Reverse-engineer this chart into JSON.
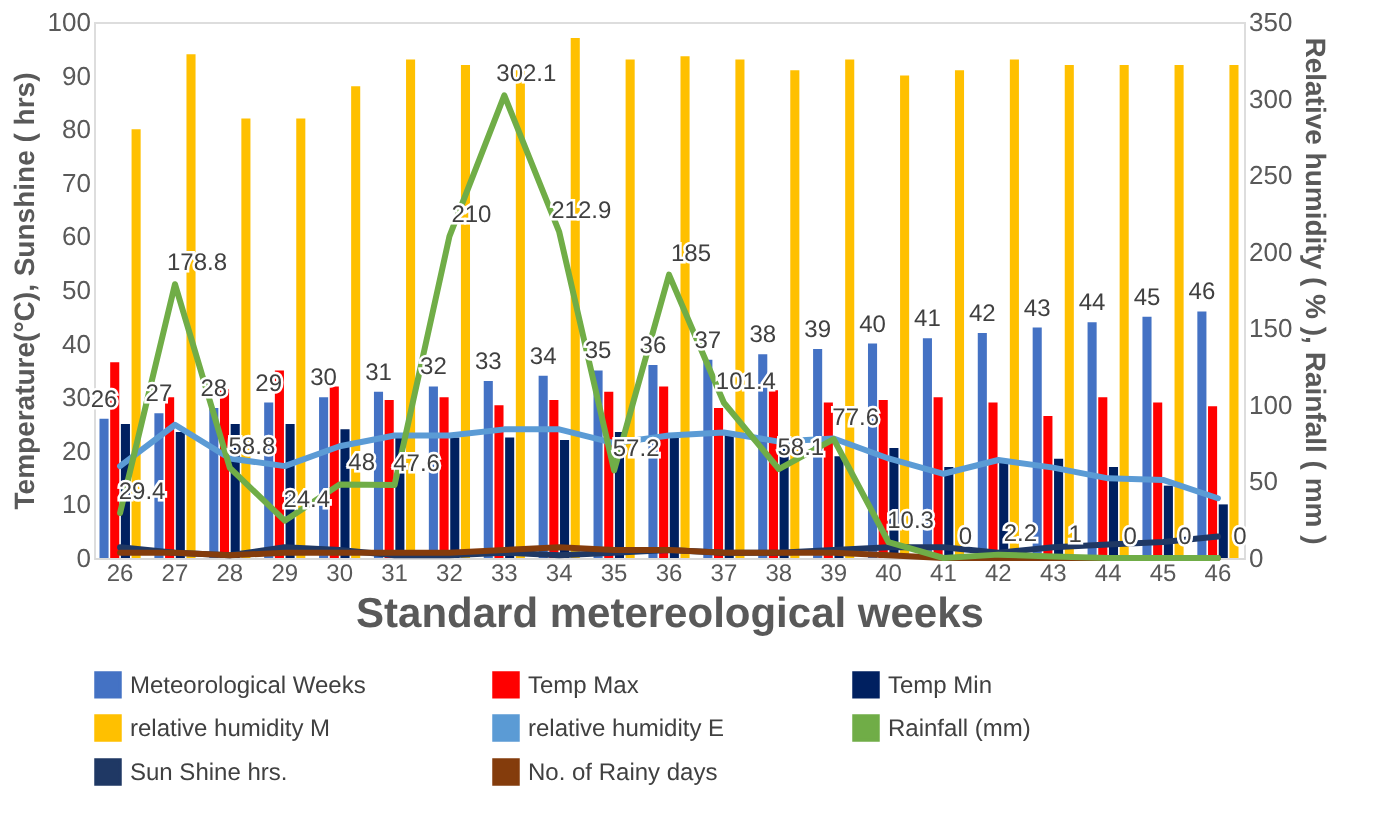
{
  "chart_data": {
    "type": "bar",
    "xlabel": "Standard metereological weeks",
    "ylabel": "Temperature(°C), Sunshine ( hrs)",
    "y2label": "Relative humidity ( % ), Rainfall ( mm )",
    "categories": [
      "26",
      "27",
      "28",
      "29",
      "30",
      "31",
      "32",
      "33",
      "34",
      "35",
      "36",
      "37",
      "38",
      "39",
      "40",
      "41",
      "42",
      "43",
      "44",
      "45",
      "46"
    ],
    "ylim": [
      0,
      100
    ],
    "yticks": [
      0,
      10,
      20,
      30,
      40,
      50,
      60,
      70,
      80,
      90,
      100
    ],
    "y2lim": [
      0,
      350
    ],
    "y2ticks": [
      0,
      50,
      100,
      150,
      200,
      250,
      300,
      350
    ],
    "grid": false,
    "legend": "bottom",
    "series": [
      {
        "name": "Meteorological Weeks",
        "color": "#4472c4",
        "data_labels": true,
        "values": [
          26,
          27,
          28,
          29,
          30,
          31,
          32,
          33,
          34,
          35,
          36,
          37,
          38,
          39,
          40,
          41,
          42,
          43,
          44,
          45,
          46
        ]
      },
      {
        "name": "Temp Max",
        "color": "#ff0000",
        "values": [
          36.5,
          30,
          31.5,
          35,
          32,
          29.5,
          30,
          28.5,
          29.5,
          31,
          32,
          28,
          31.3,
          29,
          29.5,
          30,
          29,
          26.5,
          30,
          29,
          28.3
        ]
      },
      {
        "name": "Temp Min",
        "color": "#002060",
        "values": [
          25,
          23.5,
          25,
          25,
          24,
          23,
          22.5,
          22.5,
          22,
          23.5,
          22.5,
          23.5,
          21.3,
          19,
          20.5,
          17,
          18,
          18.5,
          17,
          13.5,
          10
        ]
      },
      {
        "name": "relative humidity M",
        "color": "#ffc000",
        "values": [
          80,
          94,
          82,
          82,
          88,
          93,
          92,
          91,
          97,
          93,
          93.6,
          93,
          91,
          93,
          90,
          91,
          93,
          92,
          92,
          92,
          92
        ]
      },
      {
        "name": "relative humidity E",
        "type": "line",
        "axis": "y2",
        "color": "#5b9bd5",
        "values": [
          60,
          87,
          65,
          60,
          73,
          80,
          80,
          84,
          84,
          75,
          80,
          82,
          76,
          78,
          65,
          55,
          64,
          59,
          52,
          51,
          39
        ]
      },
      {
        "name": "Rainfall (mm)",
        "type": "line",
        "axis": "y2",
        "color": "#70ad47",
        "data_labels": true,
        "values": [
          29.4,
          178.8,
          58.8,
          24.4,
          48,
          47.6,
          210,
          302.1,
          212.9,
          57.2,
          185,
          101.4,
          58.1,
          77.6,
          10.3,
          0,
          2.2,
          1,
          0,
          0,
          0
        ]
      },
      {
        "name": "Sun Shine hrs.",
        "type": "line",
        "color": "#1f3864",
        "values": [
          2,
          1,
          0.5,
          2,
          1.5,
          0.5,
          0.5,
          1,
          0.5,
          1,
          1.5,
          1,
          1,
          1.5,
          2,
          2,
          1,
          2,
          2.5,
          3,
          4
        ]
      },
      {
        "name": "No. of Rainy days",
        "type": "line",
        "color": "#843c0c",
        "values": [
          1,
          1,
          0.5,
          1,
          1,
          1,
          1,
          1.5,
          2,
          1.5,
          1.5,
          1,
          1,
          1,
          0.5,
          0,
          0,
          0,
          0,
          0,
          0
        ]
      }
    ]
  }
}
